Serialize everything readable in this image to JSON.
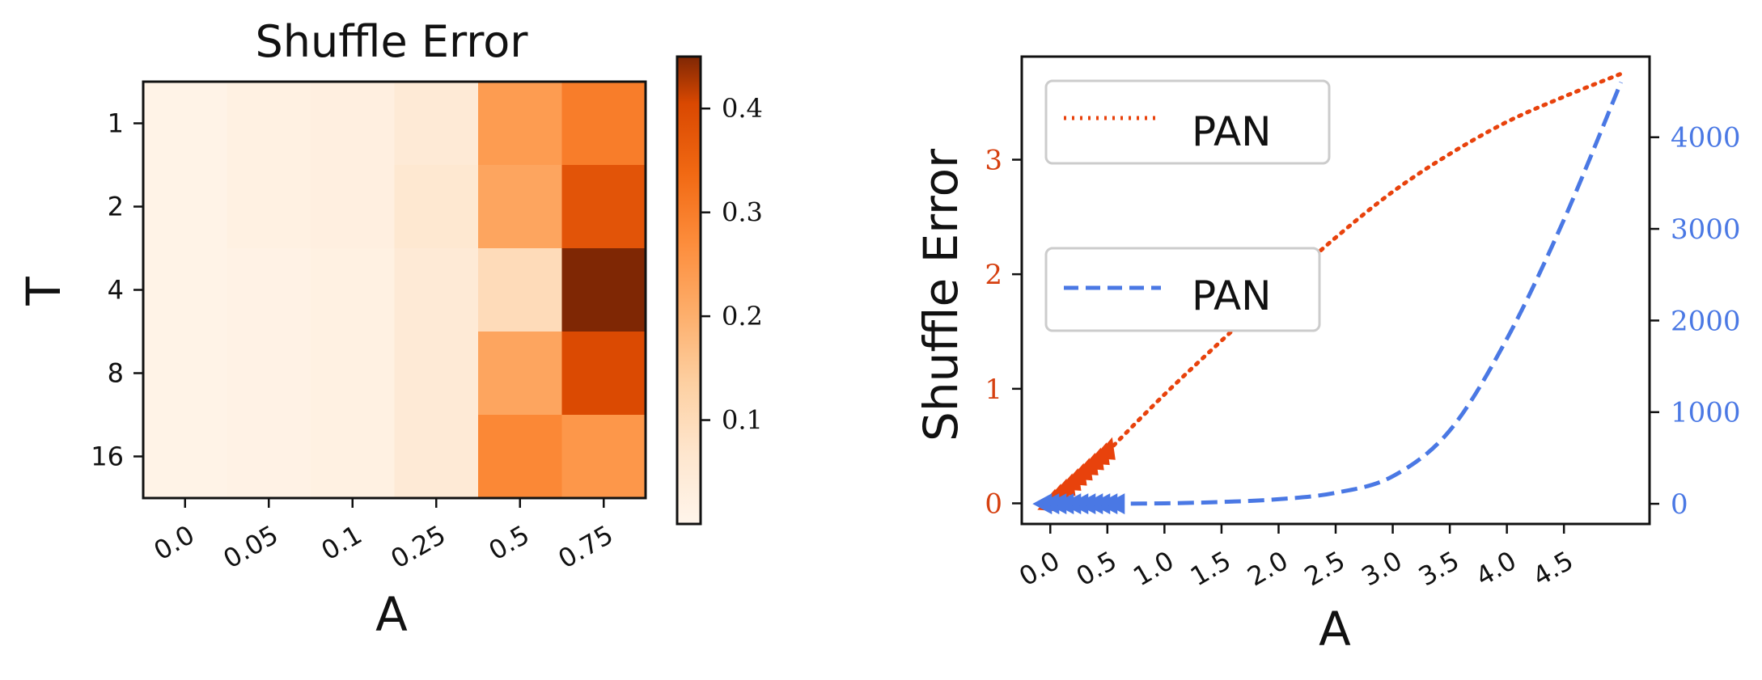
{
  "chart_data": [
    {
      "type": "heatmap",
      "title": "Shuffle Error",
      "xlabel": "A",
      "ylabel": "T",
      "x_categories": [
        "0.0",
        "0.05",
        "0.1",
        "0.25",
        "0.5",
        "0.75"
      ],
      "y_categories": [
        "1",
        "2",
        "4",
        "8",
        "16"
      ],
      "values": [
        [
          0.01,
          0.02,
          0.025,
          0.05,
          0.24,
          0.3
        ],
        [
          0.01,
          0.02,
          0.025,
          0.06,
          0.22,
          0.38
        ],
        [
          0.01,
          0.015,
          0.02,
          0.05,
          0.1,
          0.45
        ],
        [
          0.01,
          0.015,
          0.02,
          0.05,
          0.22,
          0.4
        ],
        [
          0.01,
          0.015,
          0.02,
          0.05,
          0.28,
          0.25
        ]
      ],
      "colormap": "Oranges",
      "vmin": 0.0,
      "vmax": 0.45,
      "colorbar_ticks": [
        "0.1",
        "0.2",
        "0.3",
        "0.4"
      ]
    },
    {
      "type": "line",
      "xlabel": "A",
      "ylabel": "Shuffle Error",
      "x_ticks": [
        "0.0",
        "0.5",
        "1.0",
        "1.5",
        "2.0",
        "2.5",
        "3.0",
        "3.5",
        "4.0",
        "4.5"
      ],
      "xlim": [
        -0.25,
        5.25
      ],
      "left_axis": {
        "ylim": [
          -0.18,
          3.9
        ],
        "ticks": [
          "0",
          "1",
          "2",
          "3"
        ],
        "color": "#d64010"
      },
      "right_axis": {
        "ylim": [
          -220,
          4880
        ],
        "ticks": [
          "0",
          "1000",
          "2000",
          "3000",
          "4000"
        ],
        "color": "#4a78e4"
      },
      "legend_placement": "upper-left",
      "series": [
        {
          "name": "PAN",
          "axis": "left",
          "style": "dotted",
          "color": "#e8420c",
          "x": [
            0.5,
            1.0,
            1.5,
            2.0,
            2.5,
            3.0,
            3.5,
            4.0,
            4.5,
            5.0
          ],
          "y": [
            0.45,
            0.95,
            1.42,
            1.88,
            2.32,
            2.72,
            3.05,
            3.33,
            3.55,
            3.75
          ]
        },
        {
          "name": "PAN",
          "axis": "right",
          "style": "dashed",
          "color": "#4a78e4",
          "x": [
            0.5,
            1.0,
            1.5,
            2.0,
            2.5,
            3.0,
            3.5,
            4.0,
            4.5,
            5.0
          ],
          "y": [
            0,
            5,
            20,
            50,
            120,
            300,
            800,
            1800,
            3100,
            4600
          ]
        }
      ]
    }
  ]
}
